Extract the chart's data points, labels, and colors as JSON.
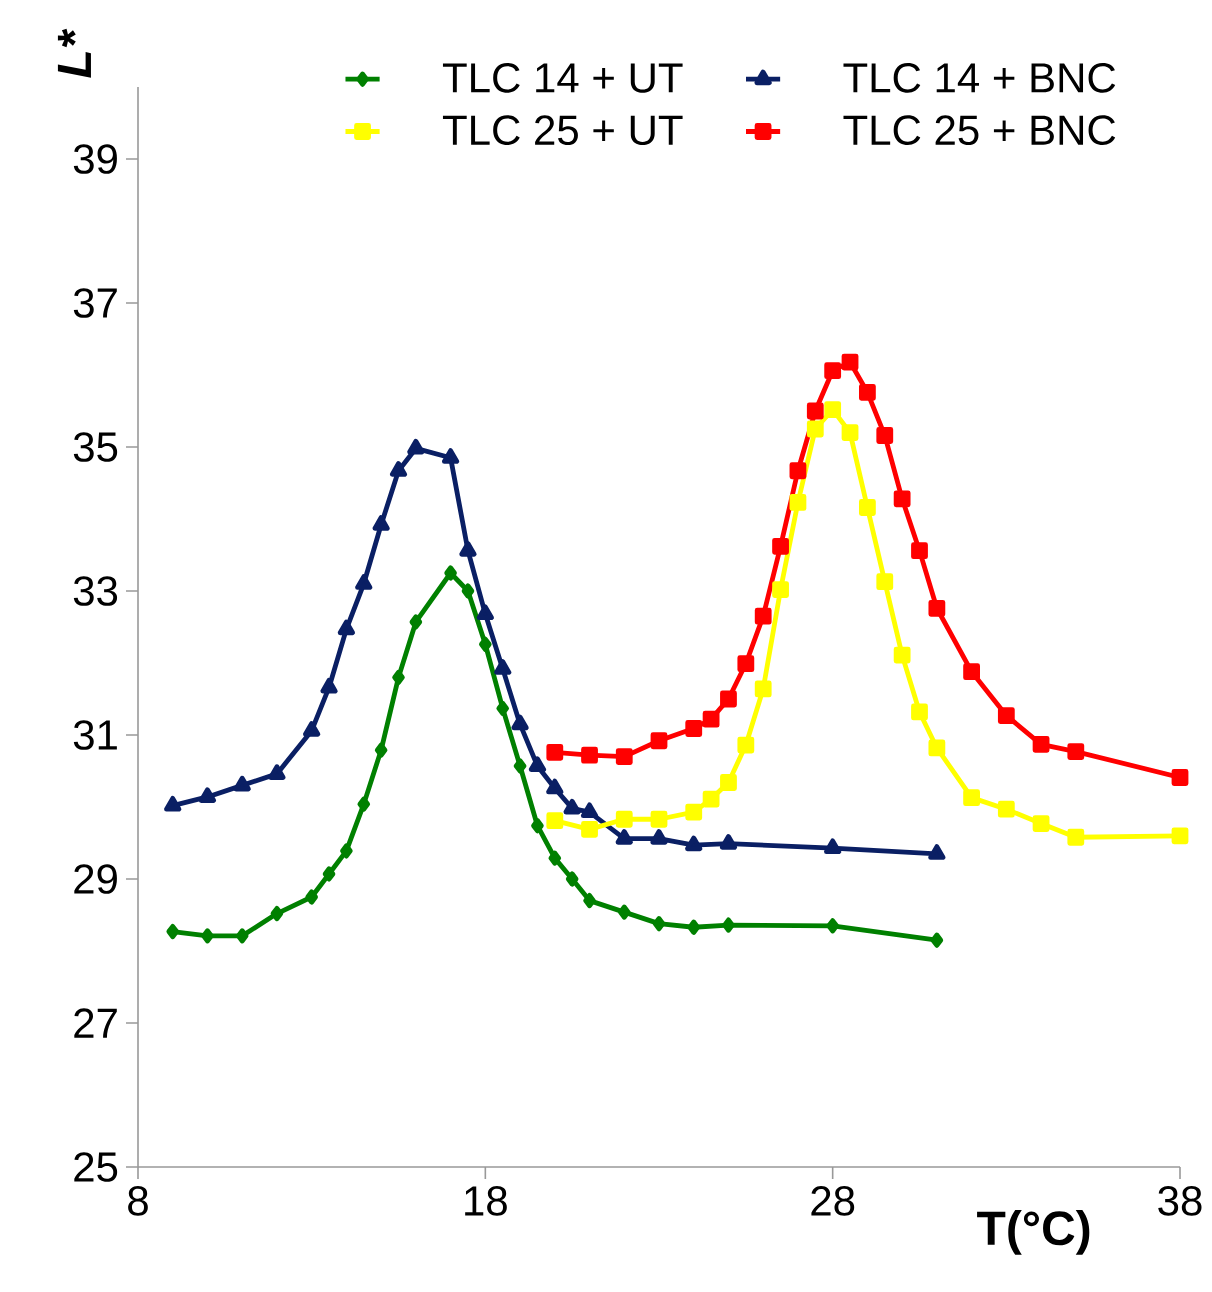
{
  "chart_data": {
    "type": "line",
    "xlabel": "T(°C)",
    "ylabel": "L*",
    "xlim": [
      8,
      38
    ],
    "xticks": [
      8,
      18,
      28,
      38
    ],
    "ylim": [
      25,
      40
    ],
    "yticks": [
      25,
      27,
      29,
      31,
      33,
      35,
      37,
      39
    ],
    "grid": false,
    "legend": "top",
    "line_style": "solid",
    "series": [
      {
        "name": "TLC 14 + UT",
        "color": "#008000",
        "marker": "diamond",
        "x": [
          9,
          10,
          11,
          12,
          13,
          13.5,
          14,
          14.5,
          15,
          15.5,
          16,
          17,
          17.5,
          18,
          18.5,
          19,
          19.5,
          20,
          20.5,
          21,
          22,
          23,
          24,
          25,
          28,
          31
        ],
        "values": [
          28.27,
          28.21,
          28.21,
          28.52,
          28.75,
          29.07,
          29.39,
          30.04,
          30.79,
          31.8,
          32.57,
          33.25,
          33.0,
          32.26,
          31.37,
          30.57,
          29.74,
          29.29,
          29.0,
          28.7,
          28.54,
          28.38,
          28.33,
          28.36,
          28.35,
          28.15
        ]
      },
      {
        "name": "TLC 14 + BNC",
        "color": "#0a1f64",
        "marker": "triangle",
        "x": [
          9,
          10,
          11,
          12,
          13,
          13.5,
          14,
          14.5,
          15,
          15.5,
          16,
          17,
          17.5,
          18,
          18.5,
          19,
          19.5,
          20,
          20.5,
          21,
          22,
          23,
          24,
          25,
          28,
          31
        ],
        "values": [
          30.02,
          30.14,
          30.3,
          30.46,
          31.06,
          31.66,
          32.47,
          33.1,
          33.92,
          34.67,
          34.98,
          34.85,
          33.56,
          32.68,
          31.92,
          31.15,
          30.57,
          30.26,
          29.98,
          29.93,
          29.56,
          29.56,
          29.47,
          29.49,
          29.43,
          29.35
        ]
      },
      {
        "name": "TLC 25 + UT",
        "color": "#ffff00",
        "marker": "square",
        "x": [
          20,
          21,
          22,
          23,
          24,
          24.5,
          25,
          25.5,
          26,
          26.5,
          27,
          27.5,
          28,
          28.5,
          29,
          29.5,
          30,
          30.5,
          31,
          32,
          33,
          34,
          35,
          38
        ],
        "values": [
          29.81,
          29.69,
          29.83,
          29.83,
          29.93,
          30.11,
          30.34,
          30.86,
          31.64,
          33.02,
          34.23,
          35.25,
          35.52,
          35.2,
          34.16,
          33.13,
          32.11,
          31.32,
          30.82,
          30.13,
          29.97,
          29.77,
          29.58,
          29.6
        ]
      },
      {
        "name": "TLC 25 + BNC",
        "color": "#ff0000",
        "marker": "square",
        "x": [
          20,
          21,
          22,
          23,
          24,
          24.5,
          25,
          25.5,
          26,
          26.5,
          27,
          27.5,
          28,
          28.5,
          29,
          29.5,
          30,
          30.5,
          31,
          32,
          33,
          34,
          35,
          38
        ],
        "values": [
          30.76,
          30.72,
          30.7,
          30.92,
          31.09,
          31.22,
          31.5,
          31.99,
          32.65,
          33.62,
          34.67,
          35.5,
          36.06,
          36.18,
          35.76,
          35.16,
          34.28,
          33.56,
          32.76,
          31.88,
          31.27,
          30.87,
          30.77,
          30.41
        ]
      }
    ]
  }
}
